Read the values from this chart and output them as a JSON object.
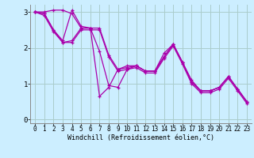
{
  "background_color": "#cceeff",
  "grid_color": "#aacccc",
  "line_color": "#aa00aa",
  "xlabel": "Windchill (Refroidissement éolien,°C)",
  "xlim": [
    -0.5,
    23.5
  ],
  "ylim": [
    -0.1,
    3.2
  ],
  "xticks": [
    0,
    1,
    2,
    3,
    4,
    5,
    6,
    7,
    8,
    9,
    10,
    11,
    12,
    13,
    14,
    15,
    16,
    17,
    18,
    19,
    20,
    21,
    22,
    23
  ],
  "yticks": [
    0,
    1,
    2,
    3
  ],
  "series": [
    [
      3.0,
      3.0,
      3.05,
      3.05,
      2.95,
      2.55,
      2.55,
      1.9,
      0.95,
      0.9,
      1.4,
      1.5,
      1.35,
      1.35,
      1.75,
      2.1,
      1.6,
      1.05,
      0.8,
      0.8,
      0.9,
      1.2,
      0.85,
      0.5
    ],
    [
      3.0,
      2.95,
      2.5,
      2.2,
      3.05,
      2.6,
      2.55,
      2.55,
      1.8,
      1.4,
      1.45,
      1.5,
      1.35,
      1.35,
      1.85,
      2.1,
      1.6,
      1.1,
      0.8,
      0.8,
      0.9,
      1.2,
      0.85,
      0.5
    ],
    [
      3.0,
      2.95,
      2.5,
      2.15,
      2.2,
      2.55,
      2.55,
      0.65,
      0.9,
      1.4,
      1.5,
      1.5,
      1.35,
      1.35,
      1.75,
      2.1,
      1.6,
      1.05,
      0.8,
      0.8,
      0.9,
      1.2,
      0.85,
      0.5
    ],
    [
      3.0,
      2.9,
      2.45,
      2.15,
      2.15,
      2.5,
      2.5,
      2.5,
      1.75,
      1.35,
      1.4,
      1.45,
      1.3,
      1.3,
      1.7,
      2.05,
      1.55,
      1.0,
      0.75,
      0.75,
      0.85,
      1.15,
      0.8,
      0.45
    ]
  ],
  "xlabel_fontsize": 6.0,
  "tick_fontsize": 5.5,
  "linewidth": 0.9,
  "markersize": 3.5
}
